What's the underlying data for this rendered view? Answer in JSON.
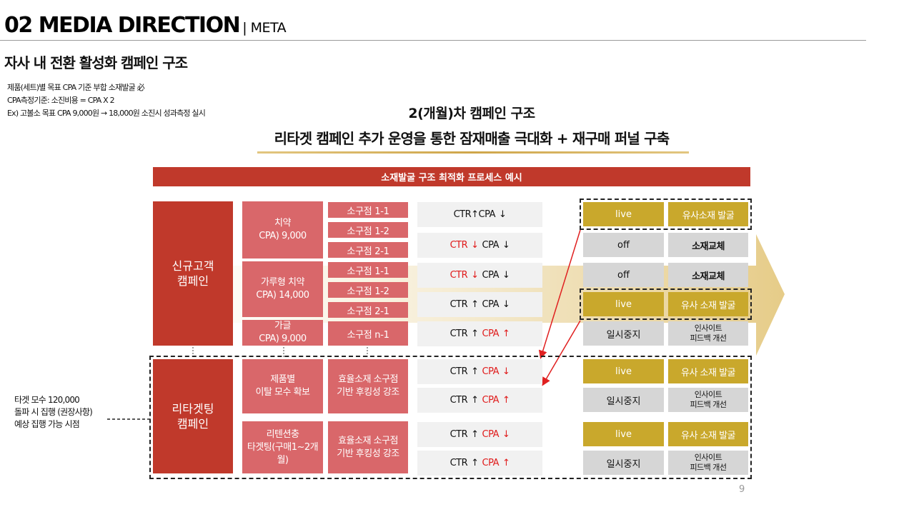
{
  "header": {
    "title": "02 MEDIA DIRECTION",
    "subtitle": "| META"
  },
  "section_title": "자사 내 전환 활성화 캠페인 구조",
  "notes": [
    "제품(세트)별 목표 CPA 기준 부합 소재발굴 必",
    "CPA측정기준: 소진비용 = CPA X 2",
    "Ex) 고볼소 목표 CPA 9,000원 → 18,000원 소진시 성과측정 실시"
  ],
  "campaign_title": "2(개월)차 캠페인 구조",
  "campaign_subtitle": "리타겟 캠페인 추가 운영을 통한 잠재매출 극대화 + 재구매 퍼널 구축",
  "process_banner": "소재발굴 구조 최적화 프로세스 예시",
  "campaigns": {
    "new": "신규고객\n캠페인",
    "retarget": "리타겟팅\n캠페인"
  },
  "products": [
    "치약\nCPA) 9,000",
    "가루형 치약\nCPA) 14,000",
    "가글\nCPA) 9,000",
    "제품별\n이탈 모수 확보",
    "리텐션충\n타겟팅(구매1~2개월)"
  ],
  "stores": [
    "소구점 1-1",
    "소구점 1-2",
    "소구점 2-1",
    "소구점 1-1",
    "소구점 1-2",
    "소구점 2-1",
    "소구점 n-1",
    "효율소재 소구점\n기반 후킹성 강조",
    "효율소재 소구점\n기반 후킹성 강조"
  ],
  "metric_labels": {
    "ctr": "CTR",
    "cpa": "CPA",
    "up": "↑",
    "down": "↓"
  },
  "status": {
    "live": "live",
    "off": "off",
    "pause": "일시중지"
  },
  "actions": {
    "similar1": "유사소재 발굴",
    "similar2": "유사 소재 발굴",
    "replace": "소재교체",
    "insight": "인사이트\n피드백 개선"
  },
  "target_note": "타겟 모수 120,000\n돌파 시 집행 (권장사항)\n예상 집행 가능 시점",
  "page_number": "9",
  "colors": {
    "red": "#c0392b",
    "pink": "#d9676a",
    "gold": "#c9a82c",
    "grey": "#d6d6d6"
  }
}
